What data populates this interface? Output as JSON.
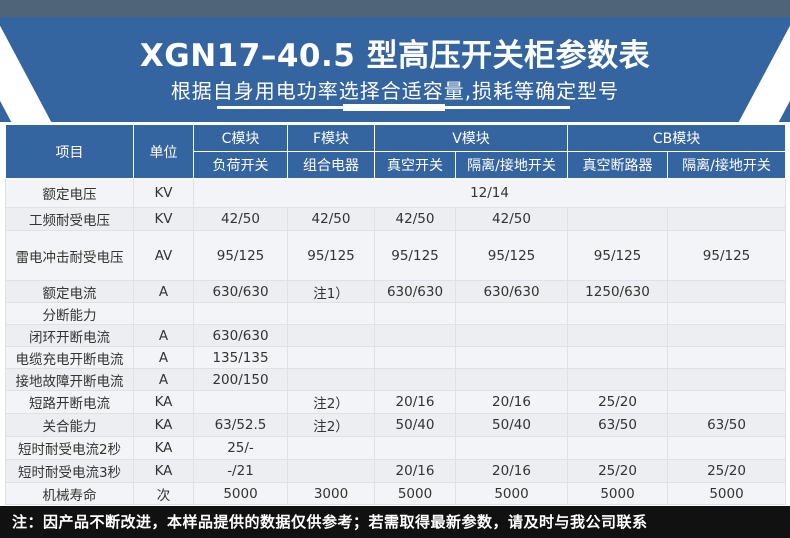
{
  "header": {
    "title": "XGN17–40.5 型高压开关柜参数表",
    "subtitle": "根据自身用电功率选择合适容量,损耗等确定型号"
  },
  "table": {
    "col_item": "项目",
    "col_unit": "单位",
    "groups": [
      "C模块",
      "F模块",
      "V模块",
      "CB模块"
    ],
    "subcols": [
      "负荷开关",
      "组合电器",
      "真空开关",
      "隔离/接地开关",
      "真空断路器",
      "隔离/接地开关"
    ],
    "rows": [
      {
        "item": "额定电压",
        "unit": "KV",
        "span": "12/14"
      },
      {
        "item": "工频耐受电压",
        "unit": "KV",
        "values": [
          "42/50",
          "42/50",
          "42/50",
          "42/50",
          "",
          ""
        ]
      },
      {
        "item": "雷电冲击耐受电压",
        "unit": "AV",
        "values": [
          "95/125",
          "95/125",
          "95/125",
          "95/125",
          "95/125",
          "95/125"
        ]
      },
      {
        "item": "额定电流",
        "unit": "A",
        "values": [
          "630/630",
          "注1）",
          "630/630",
          "630/630",
          "1250/630",
          ""
        ]
      },
      {
        "item": "分断能力",
        "unit": "",
        "values": [
          "",
          "",
          "",
          "",
          "",
          ""
        ]
      },
      {
        "item": "闭环开断电流",
        "unit": "A",
        "values": [
          "630/630",
          "",
          "",
          "",
          "",
          ""
        ]
      },
      {
        "item": "电缆充电开断电流",
        "unit": "A",
        "values": [
          "135/135",
          "",
          "",
          "",
          "",
          ""
        ]
      },
      {
        "item": "接地故障开断电流",
        "unit": "A",
        "values": [
          "200/150",
          "",
          "",
          "",
          "",
          ""
        ]
      },
      {
        "item": "短路开断电流",
        "unit": "KA",
        "values": [
          "",
          "注2）",
          "20/16",
          "20/16",
          "25/20",
          ""
        ]
      },
      {
        "item": "关合能力",
        "unit": "KA",
        "values": [
          "63/52.5",
          "注2）",
          "50/40",
          "50/40",
          "63/50",
          "63/50"
        ]
      },
      {
        "item": "短时耐受电流2秒",
        "unit": "KA",
        "values": [
          "25/-",
          "",
          "",
          "",
          "",
          ""
        ]
      },
      {
        "item": "短时耐受电流3秒",
        "unit": "KA",
        "values": [
          "-/21",
          "",
          "20/16",
          "20/16",
          "25/20",
          "25/20"
        ]
      },
      {
        "item": "机械寿命",
        "unit": "次",
        "values": [
          "5000",
          "3000",
          "5000",
          "5000",
          "5000",
          "5000"
        ]
      }
    ]
  },
  "footer": {
    "note": "注：因产品不断改进，本样品提供的数据仅供参考；若需取得最新参数，请及时与我公司联系"
  }
}
